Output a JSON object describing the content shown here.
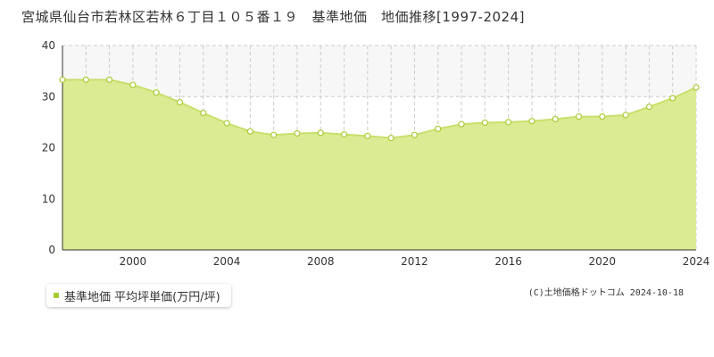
{
  "title": "宮城県仙台市若林区若林６丁目１０５番１９　基準地価　地価推移[1997-2024]",
  "legend": {
    "label": "基準地価 平均坪単価(万円/坪)"
  },
  "copyright": "(C)土地価格ドットコム 2024-10-18",
  "colors": {
    "fill": "#dbeb93",
    "line": "#c7e06a",
    "marker": "#a8cc33",
    "grid": "#cccccc",
    "upper_band": "#f7f7f7"
  },
  "chart_data": {
    "type": "area",
    "x": [
      1997,
      1998,
      1999,
      2000,
      2001,
      2002,
      2003,
      2004,
      2005,
      2006,
      2007,
      2008,
      2009,
      2010,
      2011,
      2012,
      2013,
      2014,
      2015,
      2016,
      2017,
      2018,
      2019,
      2020,
      2021,
      2022,
      2023,
      2024
    ],
    "series": [
      {
        "values": [
          33.3,
          33.3,
          33.3,
          32.3,
          30.8,
          28.9,
          26.8,
          24.8,
          23.2,
          22.5,
          22.8,
          22.9,
          22.6,
          22.3,
          21.9,
          22.5,
          23.7,
          24.6,
          24.9,
          25.0,
          25.2,
          25.6,
          26.1,
          26.1,
          26.4,
          28.0,
          29.7,
          31.8
        ]
      }
    ],
    "xlim": [
      1997,
      2024
    ],
    "ylim": [
      0,
      40
    ],
    "x_ticks": [
      2000,
      2004,
      2008,
      2012,
      2016,
      2020,
      2024
    ],
    "y_ticks": [
      0,
      10,
      20,
      30,
      40
    ],
    "grid": true,
    "legend_position": "bottom-left"
  }
}
